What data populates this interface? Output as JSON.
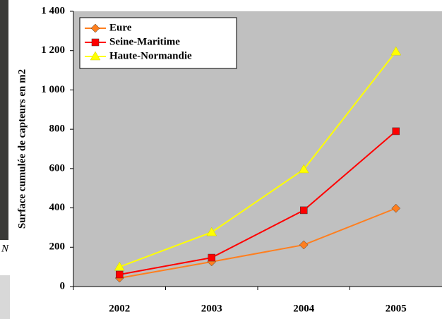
{
  "photo_caption": "N",
  "chart_data": {
    "type": "line",
    "y_label": "Surface cumulée de capteurs en m2",
    "categories": [
      "2002",
      "2003",
      "2004",
      "2005"
    ],
    "series": [
      {
        "name": "Eure",
        "color": "#ff7f1f",
        "marker": "diamond",
        "values": [
          43,
          126,
          212,
          398
        ]
      },
      {
        "name": "Seine-Maritime",
        "color": "#ff0000",
        "marker": "square",
        "values": [
          61,
          147,
          388,
          790
        ]
      },
      {
        "name": "Haute-Normandie",
        "color": "#ffff00",
        "marker": "triangle",
        "values": [
          100,
          276,
          596,
          1195
        ]
      }
    ],
    "ylim": [
      0,
      1400
    ],
    "yticks": [
      0,
      200,
      400,
      600,
      800,
      {
        "value": 1000,
        "label": "1 000"
      },
      {
        "value": 1200,
        "label": "1 200"
      },
      {
        "value": 1400,
        "label": "1 400"
      }
    ],
    "grid": false,
    "legend": "top-left",
    "plot_background": "#c0c0c0"
  }
}
